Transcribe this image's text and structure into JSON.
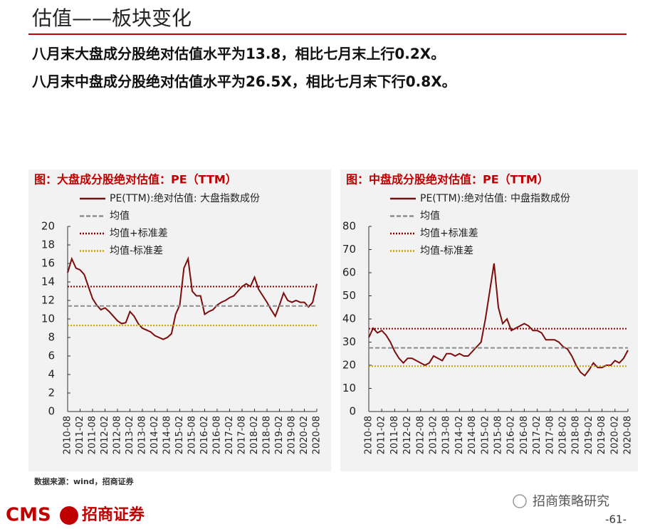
{
  "header": {
    "title": "估值——板块变化",
    "bullets": [
      "八月末大盘成分股绝对估值水平为13.8，相比七月末上行0.2X。",
      "八月末中盘成分股绝对估值水平为26.5X，相比七月末下行0.8X。"
    ]
  },
  "chart_data": [
    {
      "type": "line",
      "title": "图：大盘成分股绝对估值：PE（TTM）",
      "x": [
        "2010-08",
        "2010-10",
        "2010-12",
        "2011-02",
        "2011-04",
        "2011-06",
        "2011-08",
        "2011-10",
        "2011-12",
        "2012-02",
        "2012-04",
        "2012-06",
        "2012-08",
        "2012-10",
        "2012-12",
        "2013-02",
        "2013-04",
        "2013-06",
        "2013-08",
        "2013-10",
        "2013-12",
        "2014-02",
        "2014-04",
        "2014-06",
        "2014-08",
        "2014-10",
        "2014-12",
        "2015-02",
        "2015-04",
        "2015-06",
        "2015-08",
        "2015-10",
        "2015-12",
        "2016-02",
        "2016-04",
        "2016-06",
        "2016-08",
        "2016-10",
        "2016-12",
        "2017-02",
        "2017-04",
        "2017-06",
        "2017-08",
        "2017-10",
        "2017-12",
        "2018-02",
        "2018-04",
        "2018-06",
        "2018-08",
        "2018-10",
        "2018-12",
        "2019-02",
        "2019-04",
        "2019-06",
        "2019-08",
        "2019-10",
        "2019-12",
        "2020-02",
        "2020-04",
        "2020-06",
        "2020-08"
      ],
      "xlim": [
        "2010-08",
        "2020-08"
      ],
      "xticks": [
        "2010-08",
        "2011-02",
        "2011-08",
        "2012-02",
        "2012-08",
        "2013-02",
        "2013-08",
        "2014-02",
        "2014-08",
        "2015-02",
        "2015-08",
        "2016-02",
        "2016-08",
        "2017-02",
        "2017-08",
        "2018-02",
        "2018-08",
        "2019-02",
        "2019-08",
        "2020-02",
        "2020-08"
      ],
      "ylim": [
        0,
        20
      ],
      "yticks": [
        0,
        2,
        4,
        6,
        8,
        10,
        12,
        14,
        16,
        18,
        20
      ],
      "series": [
        {
          "name": "PE(TTM):绝对估值: 大盘指数成份",
          "color": "#7b0c0c",
          "style": "solid",
          "values": [
            15,
            16.5,
            15.5,
            15.3,
            14.8,
            13.5,
            12.2,
            11.5,
            11,
            11.2,
            10.8,
            10.3,
            9.8,
            9.5,
            9.6,
            10.8,
            10.3,
            9.5,
            9,
            8.8,
            8.6,
            8.2,
            8,
            7.8,
            8,
            8.4,
            10.5,
            11.5,
            15.5,
            16.5,
            13,
            12.5,
            12.5,
            10.5,
            10.8,
            11,
            11.5,
            11.8,
            12,
            12.3,
            12.5,
            13,
            13.5,
            13.8,
            13.5,
            14.5,
            13.2,
            12.5,
            11.8,
            11,
            10.3,
            11.5,
            12.8,
            12,
            11.8,
            12,
            11.8,
            11.8,
            11.3,
            11.8,
            13.8
          ]
        },
        {
          "name": "均值",
          "color": "#8c8c8c",
          "style": "dashed",
          "value": 11.4
        },
        {
          "name": "均值+标准差",
          "color": "#8b0000",
          "style": "dotted",
          "value": 13.5
        },
        {
          "name": "均值-标准差",
          "color": "#c9a000",
          "style": "dotted",
          "value": 9.3
        }
      ]
    },
    {
      "type": "line",
      "title": "图：中盘成分股绝对估值：PE（TTM）",
      "x": [
        "2010-08",
        "2010-10",
        "2010-12",
        "2011-02",
        "2011-04",
        "2011-06",
        "2011-08",
        "2011-10",
        "2011-12",
        "2012-02",
        "2012-04",
        "2012-06",
        "2012-08",
        "2012-10",
        "2012-12",
        "2013-02",
        "2013-04",
        "2013-06",
        "2013-08",
        "2013-10",
        "2013-12",
        "2014-02",
        "2014-04",
        "2014-06",
        "2014-08",
        "2014-10",
        "2014-12",
        "2015-02",
        "2015-04",
        "2015-06",
        "2015-08",
        "2015-10",
        "2015-12",
        "2016-02",
        "2016-04",
        "2016-06",
        "2016-08",
        "2016-10",
        "2016-12",
        "2017-02",
        "2017-04",
        "2017-06",
        "2017-08",
        "2017-10",
        "2017-12",
        "2018-02",
        "2018-04",
        "2018-06",
        "2018-08",
        "2018-10",
        "2018-12",
        "2019-02",
        "2019-04",
        "2019-06",
        "2019-08",
        "2019-10",
        "2019-12",
        "2020-02",
        "2020-04",
        "2020-06",
        "2020-08"
      ],
      "xlim": [
        "2010-08",
        "2020-08"
      ],
      "xticks": [
        "2010-08",
        "2011-02",
        "2011-08",
        "2012-02",
        "2012-08",
        "2013-02",
        "2013-08",
        "2014-02",
        "2014-08",
        "2015-02",
        "2015-08",
        "2016-02",
        "2016-08",
        "2017-02",
        "2017-08",
        "2018-02",
        "2018-08",
        "2019-02",
        "2019-08",
        "2020-02",
        "2020-08"
      ],
      "ylim": [
        0,
        80
      ],
      "yticks": [
        0,
        10,
        20,
        30,
        40,
        50,
        60,
        70,
        80
      ],
      "series": [
        {
          "name": "PE(TTM):绝对估值: 中盘指数成份",
          "color": "#7b0c0c",
          "style": "solid",
          "values": [
            32,
            36,
            34,
            35,
            33,
            30,
            26,
            23,
            21,
            23,
            23,
            22,
            21,
            20,
            21,
            24,
            23,
            22,
            25,
            25,
            24,
            25,
            24,
            24,
            26,
            28,
            30,
            40,
            52,
            64,
            45,
            38,
            40,
            35,
            36,
            37,
            38,
            37,
            35,
            35,
            34,
            31,
            31,
            31,
            30,
            28,
            27,
            24,
            20,
            17,
            15.5,
            18,
            21,
            19,
            19,
            20,
            20,
            22,
            21,
            23,
            26.5
          ]
        },
        {
          "name": "均值",
          "color": "#8c8c8c",
          "style": "dashed",
          "value": 27.5
        },
        {
          "name": "均值+标准差",
          "color": "#8b0000",
          "style": "dotted",
          "value": 35.8
        },
        {
          "name": "均值-标准差",
          "color": "#c9a000",
          "style": "dotted",
          "value": 19.6
        }
      ]
    }
  ],
  "source": "数据来源：wind，招商证券",
  "footer": {
    "brand": "CMS",
    "company": "招商证券",
    "wechat": "招商策略研究",
    "page": "-61-"
  }
}
